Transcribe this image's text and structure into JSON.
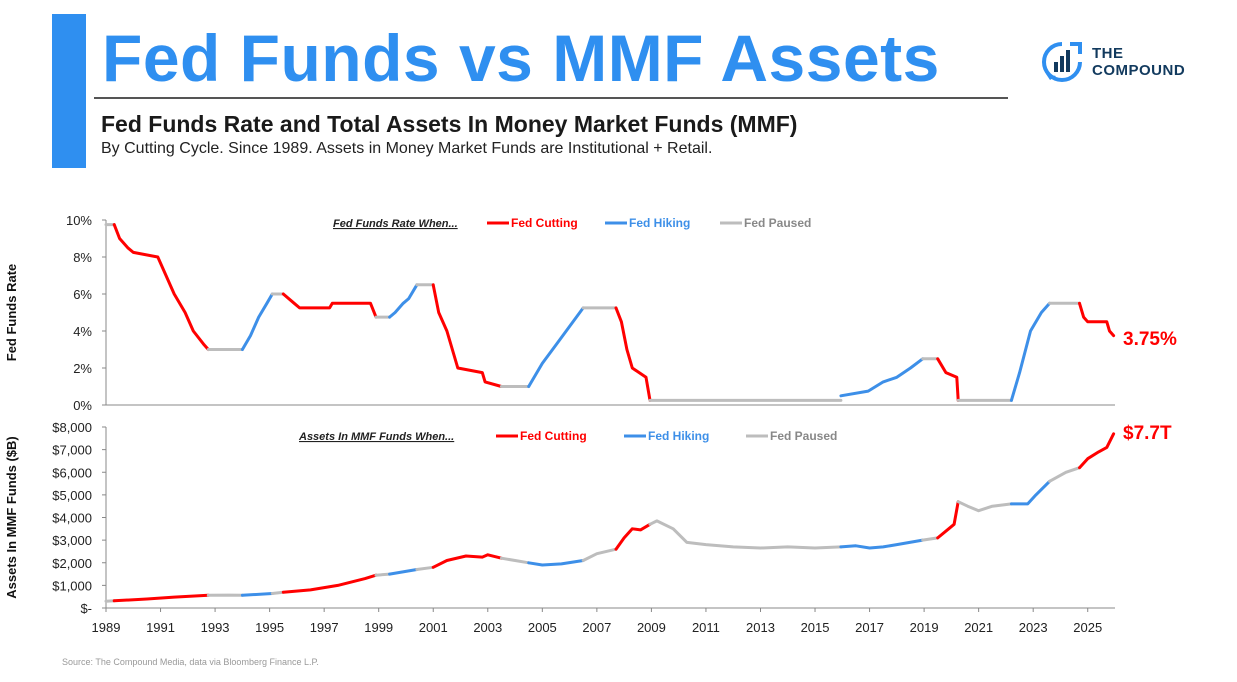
{
  "header": {
    "title": "Fed Funds vs MMF Assets",
    "subtitle": "Fed Funds Rate and Total Assets In Money Market Funds (MMF)",
    "note": "By Cutting Cycle. Since 1989. Assets in Money Market Funds are Institutional + Retail."
  },
  "logo": {
    "line1": "THE",
    "line2": "COMPOUND"
  },
  "source": "Source: The Compound Media, data via Bloomberg Finance L.P.",
  "colors": {
    "cutting": "#ff0000",
    "hiking": "#3d8fe8",
    "paused": "#bdbdbd",
    "accent": "#2f8ff0"
  },
  "chart_data": [
    {
      "type": "line",
      "title": "Fed Funds Rate",
      "ylabel": "Fed Funds Rate",
      "ylim": [
        0,
        10
      ],
      "yticks": [
        "0%",
        "2%",
        "4%",
        "6%",
        "8%",
        "10%"
      ],
      "xlim": [
        1989,
        2026
      ],
      "legend_prefix": "Fed Funds Rate When...",
      "legend": [
        "Fed Cutting",
        "Fed Hiking",
        "Fed Paused"
      ],
      "end_label": "3.75%",
      "series": [
        {
          "regime": "paused",
          "points": [
            [
              1989.0,
              9.75
            ],
            [
              1989.3,
              9.75
            ]
          ]
        },
        {
          "regime": "cutting",
          "points": [
            [
              1989.3,
              9.75
            ],
            [
              1989.5,
              9.0
            ],
            [
              1989.8,
              8.5
            ],
            [
              1990.0,
              8.25
            ],
            [
              1990.9,
              8.0
            ],
            [
              1991.2,
              7.0
            ],
            [
              1991.5,
              6.0
            ],
            [
              1991.9,
              5.0
            ],
            [
              1992.2,
              4.0
            ],
            [
              1992.6,
              3.25
            ],
            [
              1992.75,
              3.0
            ]
          ]
        },
        {
          "regime": "paused",
          "points": [
            [
              1992.75,
              3.0
            ],
            [
              1994.0,
              3.0
            ]
          ]
        },
        {
          "regime": "hiking",
          "points": [
            [
              1994.0,
              3.0
            ],
            [
              1994.3,
              3.75
            ],
            [
              1994.6,
              4.75
            ],
            [
              1994.9,
              5.5
            ],
            [
              1995.1,
              6.0
            ]
          ]
        },
        {
          "regime": "paused",
          "points": [
            [
              1995.1,
              6.0
            ],
            [
              1995.5,
              6.0
            ]
          ]
        },
        {
          "regime": "cutting",
          "points": [
            [
              1995.5,
              6.0
            ],
            [
              1995.9,
              5.5
            ],
            [
              1996.1,
              5.25
            ],
            [
              1997.2,
              5.25
            ],
            [
              1997.3,
              5.5
            ],
            [
              1998.7,
              5.5
            ],
            [
              1998.9,
              4.75
            ]
          ]
        },
        {
          "regime": "paused",
          "points": [
            [
              1998.9,
              4.75
            ],
            [
              1999.4,
              4.75
            ]
          ]
        },
        {
          "regime": "hiking",
          "points": [
            [
              1999.4,
              4.75
            ],
            [
              1999.6,
              5.0
            ],
            [
              1999.9,
              5.5
            ],
            [
              2000.1,
              5.75
            ],
            [
              2000.4,
              6.5
            ]
          ]
        },
        {
          "regime": "paused",
          "points": [
            [
              2000.4,
              6.5
            ],
            [
              2001.0,
              6.5
            ]
          ]
        },
        {
          "regime": "cutting",
          "points": [
            [
              2001.0,
              6.5
            ],
            [
              2001.2,
              5.0
            ],
            [
              2001.5,
              4.0
            ],
            [
              2001.9,
              2.0
            ],
            [
              2002.8,
              1.75
            ],
            [
              2002.9,
              1.25
            ],
            [
              2003.5,
              1.0
            ]
          ]
        },
        {
          "regime": "paused",
          "points": [
            [
              2003.5,
              1.0
            ],
            [
              2004.5,
              1.0
            ]
          ]
        },
        {
          "regime": "hiking",
          "points": [
            [
              2004.5,
              1.0
            ],
            [
              2005.0,
              2.25
            ],
            [
              2005.5,
              3.25
            ],
            [
              2006.0,
              4.25
            ],
            [
              2006.5,
              5.25
            ]
          ]
        },
        {
          "regime": "paused",
          "points": [
            [
              2006.5,
              5.25
            ],
            [
              2007.7,
              5.25
            ]
          ]
        },
        {
          "regime": "cutting",
          "points": [
            [
              2007.7,
              5.25
            ],
            [
              2007.9,
              4.5
            ],
            [
              2008.1,
              3.0
            ],
            [
              2008.3,
              2.0
            ],
            [
              2008.8,
              1.5
            ],
            [
              2008.95,
              0.25
            ]
          ]
        },
        {
          "regime": "paused",
          "points": [
            [
              2008.95,
              0.25
            ],
            [
              2015.95,
              0.25
            ]
          ]
        },
        {
          "regime": "hiking",
          "points": [
            [
              2015.95,
              0.5
            ],
            [
              2016.95,
              0.75
            ],
            [
              2017.5,
              1.25
            ],
            [
              2018.0,
              1.5
            ],
            [
              2018.5,
              2.0
            ],
            [
              2018.95,
              2.5
            ]
          ]
        },
        {
          "regime": "paused",
          "points": [
            [
              2018.95,
              2.5
            ],
            [
              2019.5,
              2.5
            ]
          ]
        },
        {
          "regime": "cutting",
          "points": [
            [
              2019.5,
              2.5
            ],
            [
              2019.8,
              1.75
            ],
            [
              2020.2,
              1.5
            ],
            [
              2020.25,
              0.25
            ]
          ]
        },
        {
          "regime": "paused",
          "points": [
            [
              2020.25,
              0.25
            ],
            [
              2022.2,
              0.25
            ]
          ]
        },
        {
          "regime": "hiking",
          "points": [
            [
              2022.2,
              0.25
            ],
            [
              2022.5,
              1.75
            ],
            [
              2022.9,
              4.0
            ],
            [
              2023.3,
              5.0
            ],
            [
              2023.6,
              5.5
            ]
          ]
        },
        {
          "regime": "paused",
          "points": [
            [
              2023.6,
              5.5
            ],
            [
              2024.7,
              5.5
            ]
          ]
        },
        {
          "regime": "cutting",
          "points": [
            [
              2024.7,
              5.5
            ],
            [
              2024.85,
              4.75
            ],
            [
              2025.0,
              4.5
            ],
            [
              2025.7,
              4.5
            ],
            [
              2025.8,
              4.0
            ],
            [
              2025.95,
              3.75
            ]
          ]
        }
      ]
    },
    {
      "type": "line",
      "title": "Assets In MMF Funds",
      "ylabel": "Assets In MMF Funds ($B)",
      "ylim": [
        0,
        8000
      ],
      "yticks": [
        "$-",
        "$1,000",
        "$2,000",
        "$3,000",
        "$4,000",
        "$5,000",
        "$6,000",
        "$7,000",
        "$8,000"
      ],
      "xlim": [
        1989,
        2026
      ],
      "xticks": [
        "1989",
        "1991",
        "1993",
        "1995",
        "1997",
        "1999",
        "2001",
        "2003",
        "2005",
        "2007",
        "2009",
        "2011",
        "2013",
        "2015",
        "2017",
        "2019",
        "2021",
        "2023",
        "2025"
      ],
      "legend_prefix": "Assets In MMF Funds When...",
      "legend": [
        "Fed Cutting",
        "Fed Hiking",
        "Fed Paused"
      ],
      "end_label": "$7.7T",
      "series": [
        {
          "regime": "paused",
          "points": [
            [
              1989.0,
              300
            ],
            [
              1989.3,
              320
            ]
          ]
        },
        {
          "regime": "cutting",
          "points": [
            [
              1989.3,
              320
            ],
            [
              1990.5,
              400
            ],
            [
              1991.5,
              480
            ],
            [
              1992.75,
              560
            ]
          ]
        },
        {
          "regime": "paused",
          "points": [
            [
              1992.75,
              560
            ],
            [
              1993.5,
              570
            ],
            [
              1994.0,
              560
            ]
          ]
        },
        {
          "regime": "hiking",
          "points": [
            [
              1994.0,
              560
            ],
            [
              1995.1,
              640
            ]
          ]
        },
        {
          "regime": "paused",
          "points": [
            [
              1995.1,
              640
            ],
            [
              1995.5,
              700
            ]
          ]
        },
        {
          "regime": "cutting",
          "points": [
            [
              1995.5,
              700
            ],
            [
              1996.5,
              800
            ],
            [
              1997.5,
              1000
            ],
            [
              1998.5,
              1300
            ],
            [
              1998.9,
              1450
            ]
          ]
        },
        {
          "regime": "paused",
          "points": [
            [
              1998.9,
              1450
            ],
            [
              1999.4,
              1500
            ]
          ]
        },
        {
          "regime": "hiking",
          "points": [
            [
              1999.4,
              1500
            ],
            [
              2000.4,
              1700
            ]
          ]
        },
        {
          "regime": "paused",
          "points": [
            [
              2000.4,
              1700
            ],
            [
              2001.0,
              1800
            ]
          ]
        },
        {
          "regime": "cutting",
          "points": [
            [
              2001.0,
              1800
            ],
            [
              2001.5,
              2100
            ],
            [
              2002.2,
              2300
            ],
            [
              2002.8,
              2250
            ],
            [
              2003.0,
              2350
            ],
            [
              2003.5,
              2200
            ]
          ]
        },
        {
          "regime": "paused",
          "points": [
            [
              2003.5,
              2200
            ],
            [
              2004.0,
              2100
            ],
            [
              2004.5,
              2000
            ]
          ]
        },
        {
          "regime": "hiking",
          "points": [
            [
              2004.5,
              2000
            ],
            [
              2005.0,
              1900
            ],
            [
              2005.7,
              1950
            ],
            [
              2006.5,
              2100
            ]
          ]
        },
        {
          "regime": "paused",
          "points": [
            [
              2006.5,
              2100
            ],
            [
              2007.0,
              2400
            ],
            [
              2007.7,
              2600
            ]
          ]
        },
        {
          "regime": "cutting",
          "points": [
            [
              2007.7,
              2600
            ],
            [
              2008.0,
              3100
            ],
            [
              2008.3,
              3500
            ],
            [
              2008.6,
              3450
            ],
            [
              2008.95,
              3700
            ]
          ]
        },
        {
          "regime": "paused",
          "points": [
            [
              2008.95,
              3700
            ],
            [
              2009.2,
              3850
            ],
            [
              2009.8,
              3500
            ],
            [
              2010.3,
              2900
            ],
            [
              2011.0,
              2800
            ],
            [
              2012.0,
              2700
            ],
            [
              2013.0,
              2650
            ],
            [
              2014.0,
              2700
            ],
            [
              2015.0,
              2650
            ],
            [
              2015.95,
              2700
            ]
          ]
        },
        {
          "regime": "hiking",
          "points": [
            [
              2015.95,
              2700
            ],
            [
              2016.5,
              2750
            ],
            [
              2017.0,
              2650
            ],
            [
              2017.5,
              2700
            ],
            [
              2018.0,
              2800
            ],
            [
              2018.95,
              3000
            ]
          ]
        },
        {
          "regime": "paused",
          "points": [
            [
              2018.95,
              3000
            ],
            [
              2019.5,
              3100
            ]
          ]
        },
        {
          "regime": "cutting",
          "points": [
            [
              2019.5,
              3100
            ],
            [
              2019.9,
              3500
            ],
            [
              2020.1,
              3700
            ],
            [
              2020.25,
              4700
            ]
          ]
        },
        {
          "regime": "paused",
          "points": [
            [
              2020.25,
              4700
            ],
            [
              2020.6,
              4500
            ],
            [
              2021.0,
              4300
            ],
            [
              2021.5,
              4500
            ],
            [
              2022.2,
              4600
            ]
          ]
        },
        {
          "regime": "hiking",
          "points": [
            [
              2022.2,
              4600
            ],
            [
              2022.8,
              4600
            ],
            [
              2023.1,
              5000
            ],
            [
              2023.6,
              5600
            ]
          ]
        },
        {
          "regime": "paused",
          "points": [
            [
              2023.6,
              5600
            ],
            [
              2024.2,
              6000
            ],
            [
              2024.7,
              6200
            ]
          ]
        },
        {
          "regime": "cutting",
          "points": [
            [
              2024.7,
              6200
            ],
            [
              2025.0,
              6600
            ],
            [
              2025.4,
              6900
            ],
            [
              2025.7,
              7100
            ],
            [
              2025.95,
              7700
            ]
          ]
        }
      ]
    }
  ]
}
